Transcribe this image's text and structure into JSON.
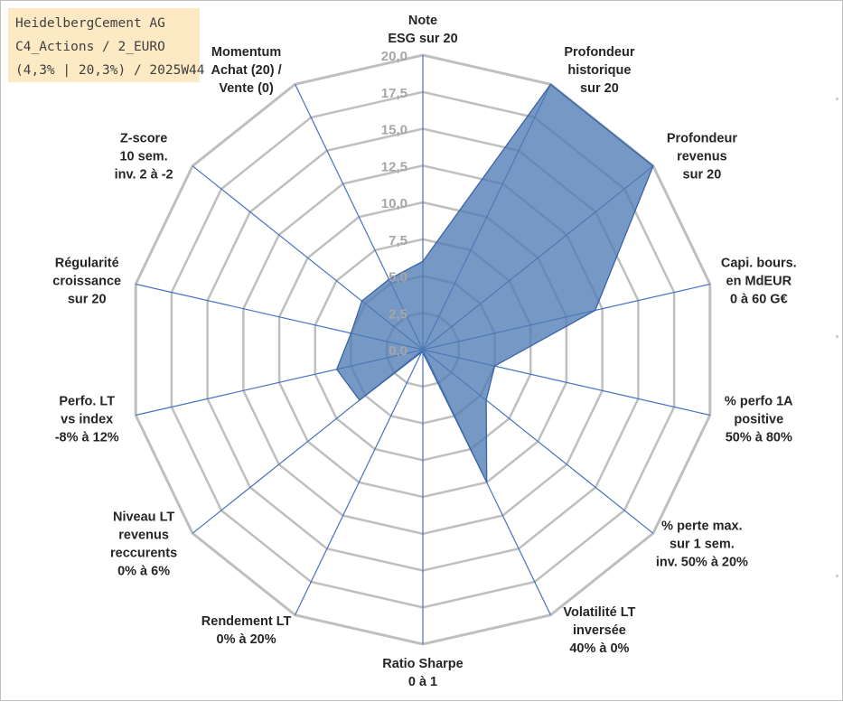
{
  "info": {
    "lines": [
      "HeidelbergCement AG",
      "C4_Actions / 2_EURO",
      "(4,3% | 20,3%) / 2025W44"
    ]
  },
  "colors": {
    "grid": "#bfbfbf",
    "spoke": "#4472c4",
    "fill": "#4f7bb4",
    "stroke": "#3a64a8",
    "info_bg": "#fde9c3"
  },
  "chart_data": {
    "type": "radar",
    "title": "",
    "rmin": 0,
    "rmax": 20,
    "ticks": [
      "0,0",
      "2,5",
      "5,0",
      "7,5",
      "10,0",
      "12,5",
      "15,0",
      "17,5",
      "20,0"
    ],
    "axes": [
      {
        "label": [
          "Note",
          "ESG sur 20"
        ]
      },
      {
        "label": [
          "Profondeur",
          "historique",
          "sur 20"
        ]
      },
      {
        "label": [
          "Profondeur",
          "revenus",
          "sur 20"
        ]
      },
      {
        "label": [
          "Capi. bours.",
          "en MdEUR",
          "0 à 60 G€"
        ]
      },
      {
        "label": [
          "% perfo 1A",
          "positive",
          "50% à 80%"
        ]
      },
      {
        "label": [
          "% perte max.",
          "sur 1 sem.",
          "inv. 50% à 20%"
        ]
      },
      {
        "label": [
          "Volatilité LT",
          "inversée",
          "40% à 0%"
        ]
      },
      {
        "label": [
          "Ratio Sharpe",
          "0 à 1"
        ]
      },
      {
        "label": [
          "Rendement LT",
          "0% à 20%"
        ]
      },
      {
        "label": [
          "Niveau LT",
          "revenus",
          "reccurents",
          "0% à 6%"
        ]
      },
      {
        "label": [
          "Perfo. LT",
          "vs index",
          "-8% à 12%"
        ]
      },
      {
        "label": [
          "Régularité",
          "croissance",
          "sur 20"
        ]
      },
      {
        "label": [
          "Z-score",
          "10 sem.",
          "inv. 2 à -2"
        ]
      },
      {
        "label": [
          "Momentum",
          "Achat (20) /",
          "Vente (0)"
        ]
      }
    ],
    "series": [
      {
        "values": [
          6.0,
          20.0,
          20.0,
          12.0,
          5.0,
          5.5,
          10.0,
          0.2,
          0.2,
          5.5,
          6.0,
          5.0,
          5.3,
          5.3
        ]
      }
    ],
    "grid": true
  }
}
